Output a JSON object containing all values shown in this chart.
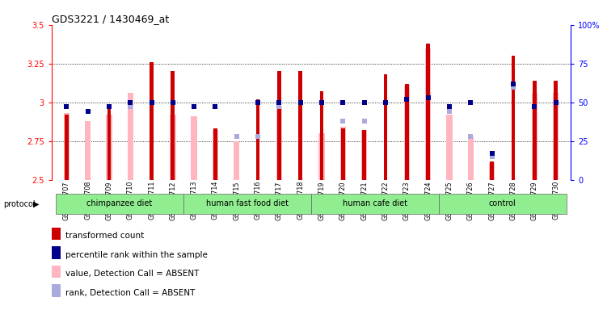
{
  "title": "GDS3221 / 1430469_at",
  "samples": [
    "GSM144707",
    "GSM144708",
    "GSM144709",
    "GSM144710",
    "GSM144711",
    "GSM144712",
    "GSM144713",
    "GSM144714",
    "GSM144715",
    "GSM144716",
    "GSM144717",
    "GSM144718",
    "GSM144719",
    "GSM144720",
    "GSM144721",
    "GSM144722",
    "GSM144723",
    "GSM144724",
    "GSM144725",
    "GSM144726",
    "GSM144727",
    "GSM144728",
    "GSM144729",
    "GSM144730"
  ],
  "red_values": [
    2.92,
    2.5,
    2.98,
    2.5,
    3.26,
    3.2,
    2.5,
    2.83,
    2.5,
    3.02,
    3.2,
    3.2,
    3.07,
    2.83,
    2.82,
    3.18,
    3.12,
    3.38,
    2.5,
    2.5,
    2.62,
    3.3,
    3.14,
    3.14
  ],
  "pink_values": [
    2.93,
    2.88,
    2.92,
    3.06,
    2.5,
    2.92,
    2.91,
    2.82,
    2.75,
    2.5,
    2.97,
    2.5,
    2.8,
    2.84,
    2.82,
    2.5,
    3.11,
    3.35,
    2.92,
    2.78,
    2.61,
    2.5,
    3.06,
    3.06
  ],
  "blue_dot_values": [
    47,
    44,
    47,
    50,
    50,
    50,
    47,
    47,
    28,
    50,
    50,
    50,
    50,
    50,
    50,
    50,
    52,
    53,
    47,
    50,
    17,
    62,
    47,
    50
  ],
  "light_blue_dot_values": [
    47,
    44,
    47,
    47,
    50,
    50,
    47,
    47,
    28,
    28,
    47,
    50,
    50,
    38,
    38,
    50,
    50,
    53,
    44,
    28,
    15,
    60,
    47,
    50
  ],
  "has_red": [
    1,
    0,
    1,
    0,
    1,
    1,
    0,
    1,
    0,
    1,
    1,
    1,
    1,
    1,
    1,
    1,
    1,
    1,
    0,
    0,
    1,
    1,
    1,
    1
  ],
  "has_pink": [
    1,
    1,
    1,
    1,
    0,
    1,
    1,
    1,
    1,
    0,
    1,
    0,
    1,
    1,
    1,
    0,
    1,
    1,
    1,
    1,
    1,
    0,
    1,
    1
  ],
  "has_blue": [
    1,
    1,
    1,
    1,
    1,
    1,
    1,
    1,
    0,
    1,
    1,
    1,
    1,
    1,
    1,
    1,
    1,
    1,
    1,
    1,
    1,
    1,
    1,
    1
  ],
  "has_lblue": [
    1,
    1,
    1,
    1,
    0,
    0,
    1,
    1,
    1,
    1,
    1,
    0,
    0,
    1,
    1,
    0,
    0,
    1,
    1,
    1,
    1,
    1,
    1,
    1
  ],
  "protocols": [
    {
      "label": "chimpanzee diet",
      "start": 0,
      "end": 5
    },
    {
      "label": "human fast food diet",
      "start": 6,
      "end": 11
    },
    {
      "label": "human cafe diet",
      "start": 12,
      "end": 17
    },
    {
      "label": "control",
      "start": 18,
      "end": 23
    }
  ],
  "ylim": [
    2.5,
    3.5
  ],
  "red_bar_width": 0.18,
  "pink_bar_width": 0.28,
  "red_color": "#CC0000",
  "pink_color": "#FFB6C1",
  "blue_color": "#00008B",
  "light_blue_color": "#AAAADD",
  "protocol_color": "#90EE90",
  "legend_items": [
    {
      "color": "#CC0000",
      "label": "transformed count"
    },
    {
      "color": "#00008B",
      "label": "percentile rank within the sample"
    },
    {
      "color": "#FFB6C1",
      "label": "value, Detection Call = ABSENT"
    },
    {
      "color": "#AAAADD",
      "label": "rank, Detection Call = ABSENT"
    }
  ]
}
